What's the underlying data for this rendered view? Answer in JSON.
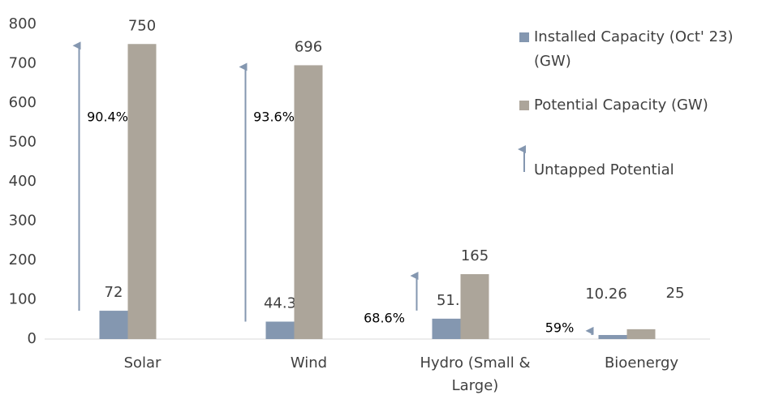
{
  "chart_data": {
    "type": "bar",
    "categories": [
      "Solar",
      "Wind",
      "Hydro (Small & Large)",
      "Bioenergy"
    ],
    "series": [
      {
        "name": "Installed Capacity (Oct' 23) (GW)",
        "color": "#8497b0",
        "values": [
          72,
          44.3,
          51.8,
          10.26
        ]
      },
      {
        "name": "Potential Capacity (GW)",
        "color": "#aca59a",
        "values": [
          750,
          696,
          165,
          25
        ]
      }
    ],
    "untapped": {
      "name": "Untapped Potential",
      "color": "#8497b0",
      "labels": [
        "90.4%",
        "93.6%",
        "68.6%",
        "59%"
      ]
    },
    "ylim": [
      0,
      800
    ],
    "yticks": [
      0,
      100,
      200,
      300,
      400,
      500,
      600,
      700,
      800
    ],
    "grid": false
  }
}
